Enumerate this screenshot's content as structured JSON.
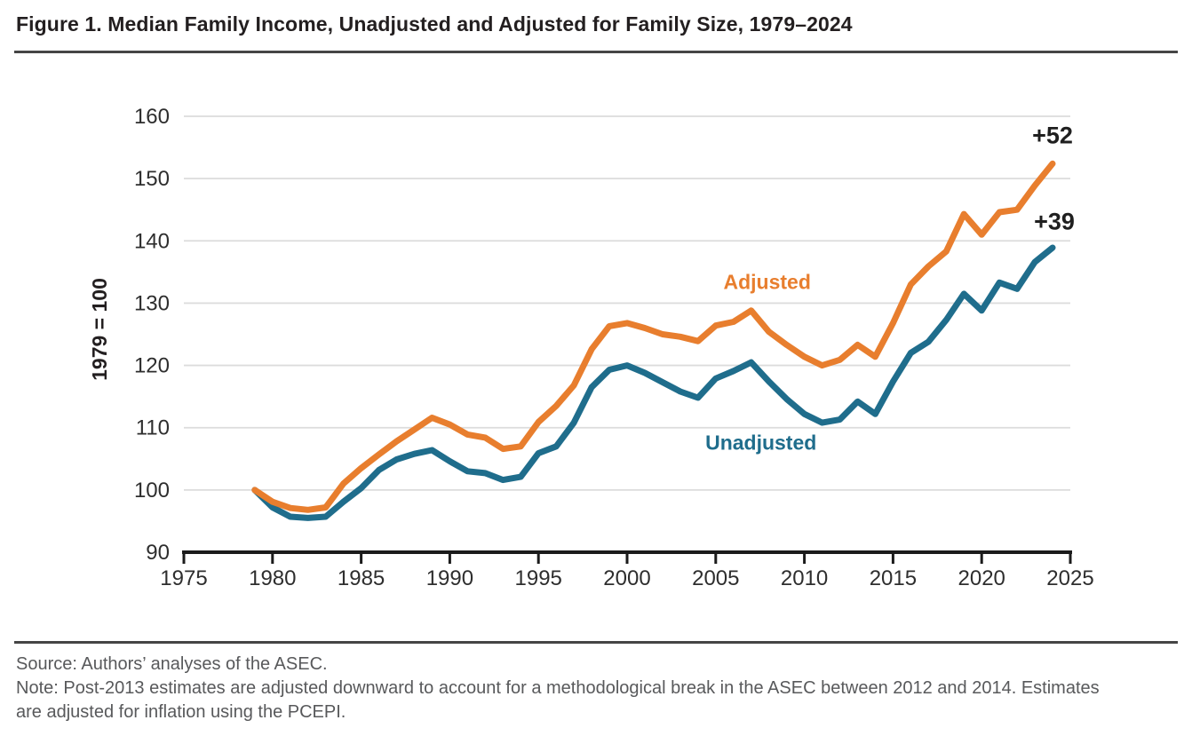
{
  "figure": {
    "title": "Figure 1. Median Family Income, Unadjusted and Adjusted for Family Size, 1979–2024",
    "source": "Source: Authors’ analyses of the ASEC.",
    "note_line1": "Note: Post-2013 estimates are adjusted downward to account for a methodological break in the ASEC between 2012 and 2014. Estimates",
    "note_line2": "are adjusted for inflation using the PCEPI."
  },
  "colors": {
    "adjusted_orange": "#E87E2E",
    "unadjusted_teal": "#1F6D8C",
    "grid": "#DCDCDC",
    "axis": "#1B1B1B",
    "text_dark": "#231F20",
    "text_axis": "#2E2E2E",
    "text_muted": "#58595B",
    "rule": "#454545"
  },
  "chart_data": {
    "type": "line",
    "title": "Figure 1. Median Family Income, Unadjusted and Adjusted for Family Size, 1979–2024",
    "xlabel": "",
    "ylabel": "1979 = 100",
    "xlim": [
      1975,
      2025
    ],
    "ylim": [
      90,
      160
    ],
    "x_ticks": [
      1975,
      1980,
      1985,
      1990,
      1995,
      2000,
      2005,
      2010,
      2015,
      2020,
      2025
    ],
    "y_ticks": [
      90,
      100,
      110,
      120,
      130,
      140,
      150,
      160
    ],
    "grid": "horizontal",
    "legend_position": "inline-labels",
    "x": [
      1979,
      1980,
      1981,
      1982,
      1983,
      1984,
      1985,
      1986,
      1987,
      1988,
      1989,
      1990,
      1991,
      1992,
      1993,
      1994,
      1995,
      1996,
      1997,
      1998,
      1999,
      2000,
      2001,
      2002,
      2003,
      2004,
      2005,
      2006,
      2007,
      2008,
      2009,
      2010,
      2011,
      2012,
      2013,
      2014,
      2015,
      2016,
      2017,
      2018,
      2019,
      2020,
      2021,
      2022,
      2023,
      2024
    ],
    "series": [
      {
        "name": "Adjusted",
        "color": "#E87E2E",
        "values": [
          100,
          98.1,
          97.1,
          96.8,
          97.2,
          101.0,
          103.5,
          105.7,
          107.8,
          109.7,
          111.6,
          110.5,
          108.9,
          108.4,
          106.6,
          107.0,
          110.9,
          113.5,
          116.8,
          122.6,
          126.3,
          126.8,
          126.0,
          125.0,
          124.6,
          123.9,
          126.4,
          127.0,
          128.8,
          125.4,
          123.3,
          121.4,
          120.0,
          120.9,
          123.3,
          121.4,
          126.8,
          133.0,
          135.9,
          138.3,
          144.3,
          141.0,
          144.6,
          145.0,
          148.9,
          152.4
        ]
      },
      {
        "name": "Unadjusted",
        "color": "#1F6D8C",
        "values": [
          100,
          97.2,
          95.7,
          95.5,
          95.7,
          98.1,
          100.3,
          103.2,
          104.9,
          105.8,
          106.4,
          104.6,
          103.0,
          102.7,
          101.6,
          102.1,
          105.9,
          107.0,
          110.8,
          116.5,
          119.3,
          120.0,
          118.8,
          117.3,
          115.8,
          114.8,
          117.9,
          119.1,
          120.5,
          117.4,
          114.6,
          112.2,
          110.8,
          111.3,
          114.2,
          112.2,
          117.4,
          122.0,
          123.8,
          127.3,
          131.5,
          128.8,
          133.3,
          132.3,
          136.6,
          138.9
        ]
      }
    ],
    "series_labels": [
      {
        "text": "Adjusted",
        "x": 2007.9,
        "y": 133.4,
        "color": "#E87E2E"
      },
      {
        "text": "Unadjusted",
        "x": 2007.55,
        "y": 107.6,
        "color": "#1F6D8C"
      }
    ],
    "end_labels": [
      {
        "text": "+52",
        "x": 2024.0,
        "y": 156.9,
        "color": "#1F1F1F"
      },
      {
        "text": "+39",
        "x": 2024.1,
        "y": 143.1,
        "color": "#1F1F1F"
      }
    ]
  }
}
